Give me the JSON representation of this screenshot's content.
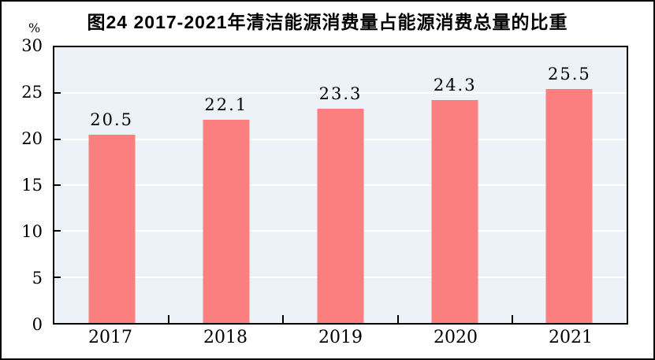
{
  "page": {
    "title": "图24  2017-2021年清洁能源消费量占能源消费总量的比重",
    "unit_label": "%"
  },
  "colors": {
    "bar": "#FC7F7F",
    "plot_background": "#ECF2F7",
    "gridline": "#FFFFFF",
    "axis_frame": "#000000",
    "outer_border": "#000000",
    "text": "#000000"
  },
  "chart_data": {
    "type": "bar",
    "title": "图24  2017-2021年清洁能源消费量占能源消费总量的比重",
    "categories": [
      "2017",
      "2018",
      "2019",
      "2020",
      "2021"
    ],
    "values": [
      20.5,
      22.1,
      23.3,
      24.3,
      25.5
    ],
    "data_labels": [
      "20.5",
      "22.1",
      "23.3",
      "24.3",
      "25.5"
    ],
    "xlabel": "",
    "ylabel": "%",
    "ylim": [
      0,
      30
    ],
    "yticks": [
      0,
      5,
      10,
      15,
      20,
      25,
      30
    ],
    "gridline_levels": [
      5,
      10,
      15,
      20,
      25
    ],
    "grid": true,
    "legend": "none"
  }
}
